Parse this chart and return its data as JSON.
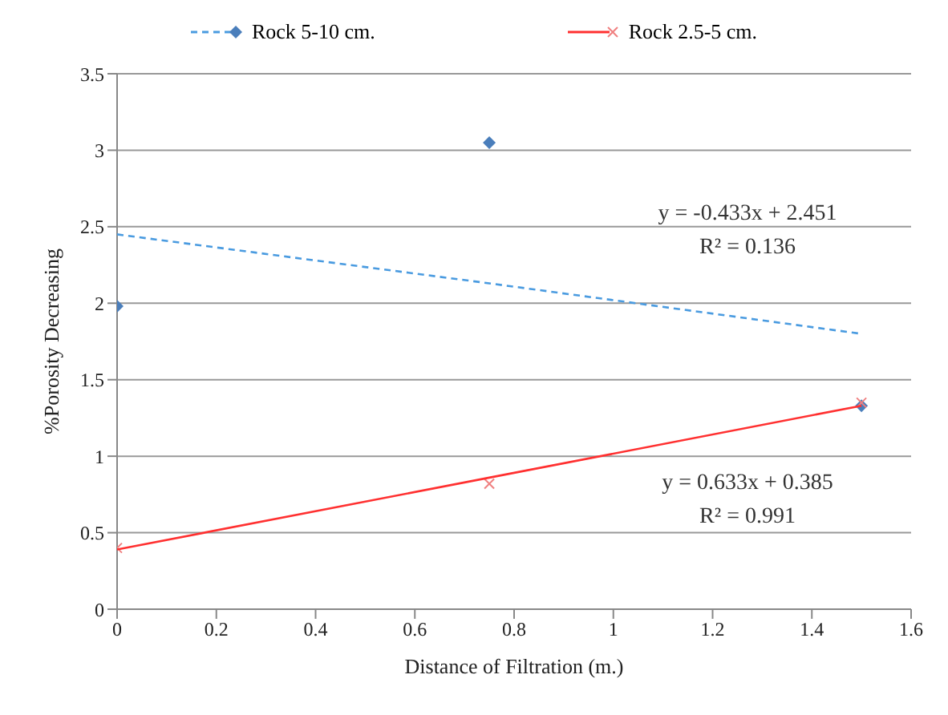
{
  "chart_data": {
    "type": "scatter",
    "xlabel": "Distance of Filtration (m.)",
    "ylabel": "%Porosity Decreasing",
    "x": [
      0,
      0.75,
      1.5
    ],
    "series": [
      {
        "name": "Rock 5-10 cm.",
        "color": "#4a7ebb",
        "values": [
          1.98,
          3.05,
          1.33
        ],
        "marker": "diamond"
      },
      {
        "type": "line",
        "color": "#4a9be0",
        "values": [
          2.45,
          2.13,
          1.8
        ],
        "line_style": "dashed",
        "marker": "none"
      },
      {
        "name": "Rock 2.5-5 cm.",
        "color": "#f08080",
        "values": [
          0.4,
          0.82,
          1.35
        ],
        "marker": "cross"
      },
      {
        "type": "line",
        "color": "#ff3030",
        "values": [
          0.39,
          0.86,
          1.33
        ],
        "line_style": "solid",
        "marker": "none"
      }
    ],
    "xlim": [
      0,
      1.6
    ],
    "xticks": [
      0,
      0.2,
      0.4,
      0.6,
      0.8,
      1,
      1.2,
      1.4,
      1.6
    ],
    "ylim": [
      0,
      3.5
    ],
    "yticks": [
      0,
      0.5,
      1,
      1.5,
      2,
      2.5,
      3,
      3.5
    ],
    "grid": "y",
    "legend": "top",
    "annotations": [
      "y = -0.433x + 2.451",
      "R² = 0.136",
      "y = 0.633x + 0.385",
      "R² = 0.991"
    ]
  }
}
